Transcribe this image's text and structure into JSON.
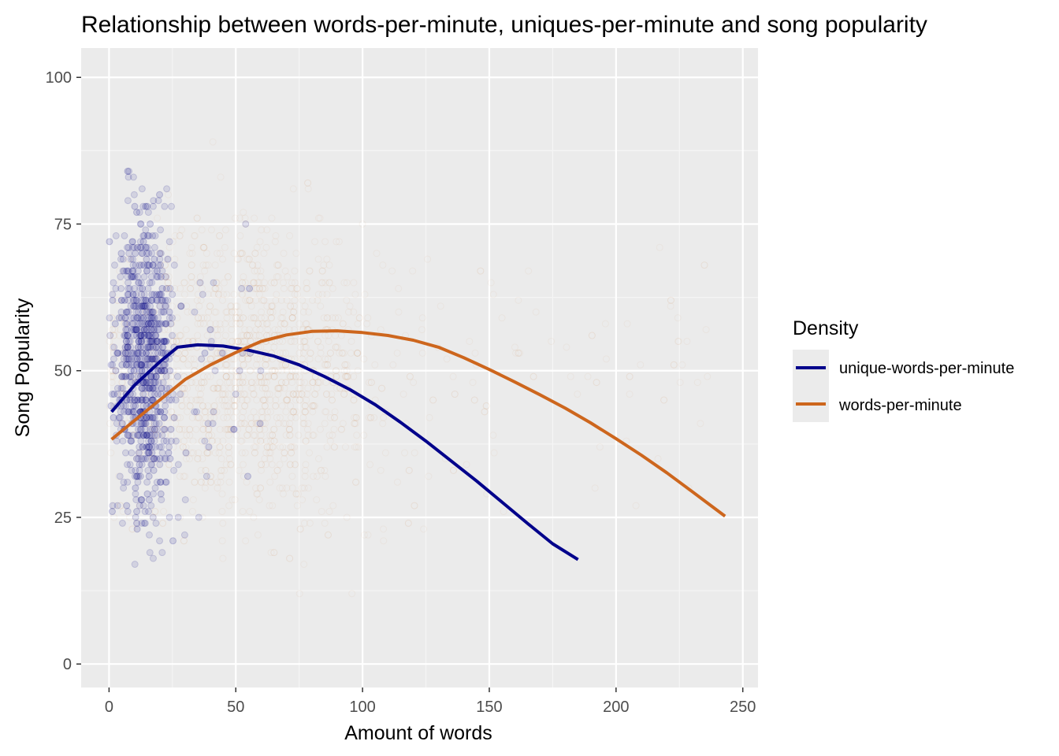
{
  "chart_data": {
    "type": "scatter",
    "title": "Relationship between words-per-minute, uniques-per-minute and song popularity",
    "xlabel": "Amount of words",
    "ylabel": "Song Popularity",
    "xlim": [
      -11,
      256
    ],
    "ylim": [
      -4,
      105
    ],
    "x_ticks": [
      0,
      50,
      100,
      150,
      200,
      250
    ],
    "y_ticks": [
      0,
      25,
      50,
      75,
      100
    ],
    "grid": true,
    "legend": {
      "title": "Density",
      "placement": "right",
      "entries": [
        {
          "label": "unique-words-per-minute",
          "color": "#00008B"
        },
        {
          "label": "words-per-minute",
          "color": "#CD661D"
        }
      ]
    },
    "series": [
      {
        "name": "unique-words-per-minute",
        "color": "#00008B",
        "type": "line",
        "x": [
          1,
          10,
          20,
          27,
          35,
          45,
          55,
          65,
          75,
          85,
          95,
          105,
          115,
          125,
          135,
          145,
          155,
          165,
          175,
          185
        ],
        "y": [
          43,
          47.5,
          51.5,
          54,
          54.4,
          54.2,
          53.5,
          52.5,
          51,
          49,
          46.8,
          44.2,
          41.2,
          38,
          34.6,
          31.2,
          27.6,
          24,
          20.5,
          17.8
        ]
      },
      {
        "name": "words-per-minute",
        "color": "#CD661D",
        "type": "line",
        "x": [
          1,
          10,
          20,
          30,
          40,
          50,
          60,
          70,
          80,
          90,
          100,
          110,
          120,
          130,
          140,
          150,
          160,
          170,
          180,
          190,
          200,
          210,
          220,
          230,
          243
        ],
        "y": [
          38.3,
          41.5,
          45,
          48.5,
          51,
          53.1,
          55,
          56.1,
          56.7,
          56.8,
          56.5,
          56,
          55.2,
          54,
          52.2,
          50.2,
          48.1,
          45.9,
          43.6,
          41.1,
          38.4,
          35.6,
          32.6,
          29.4,
          25.2
        ]
      }
    ],
    "scatter_layers": [
      {
        "name": "unique-words-per-minute",
        "color": "#00008B",
        "alpha": 0.035
      },
      {
        "name": "words-per-minute",
        "color": "#CD661D",
        "alpha": 0.025
      }
    ]
  }
}
